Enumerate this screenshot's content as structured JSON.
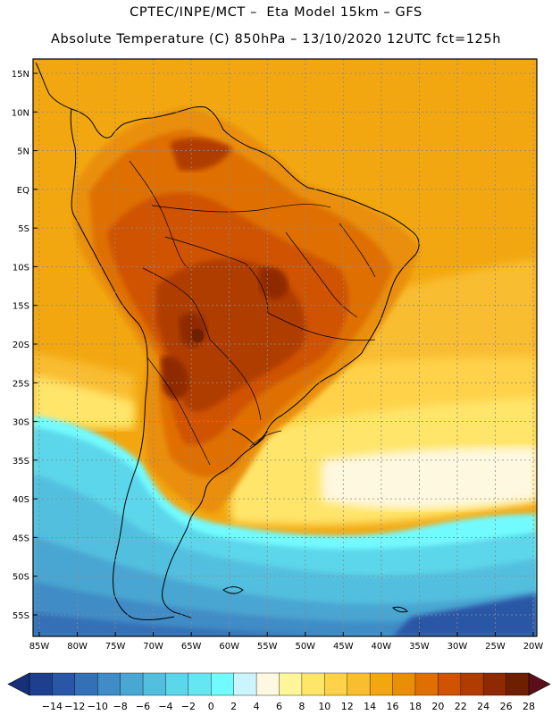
{
  "title_line1": "CPTEC/INPE/MCT –  Eta Model 15km – GFS",
  "title_line2": "Absolute Temperature (C) 850hPa – 13/10/2020 12UTC fct=125h",
  "lat_labels": [
    "15N",
    "10N",
    "5N",
    "EQ",
    "5S",
    "10S",
    "15S",
    "20S",
    "25S",
    "30S",
    "35S",
    "40S",
    "45S",
    "50S",
    "55S"
  ],
  "lat_values": [
    15,
    10,
    5,
    0,
    -5,
    -10,
    -15,
    -20,
    -25,
    -30,
    -35,
    -40,
    -45,
    -50,
    -55
  ],
  "lon_labels": [
    "85W",
    "80W",
    "75W",
    "70W",
    "65W",
    "60W",
    "55W",
    "50W",
    "45W",
    "40W",
    "35W",
    "30W",
    "25W",
    "20W"
  ],
  "lon_values": [
    -85,
    -80,
    -75,
    -70,
    -65,
    -60,
    -55,
    -50,
    -45,
    -40,
    -35,
    -30,
    -25,
    -20
  ],
  "colorbar": {
    "labels": [
      "-14",
      "-12",
      "-10",
      "-8",
      "-6",
      "-4",
      "-2",
      "0",
      "2",
      "4",
      "6",
      "8",
      "10",
      "12",
      "14",
      "16",
      "18",
      "20",
      "22",
      "24",
      "26",
      "28"
    ],
    "colors": [
      "#1e3f8e",
      "#2a56a6",
      "#3470b6",
      "#3f8cc6",
      "#4aa6d2",
      "#52bfdf",
      "#5cd6ea",
      "#66e6f2",
      "#72fbff",
      "#ccf4ff",
      "#fff8e0",
      "#fff59a",
      "#ffe56a",
      "#ffd24a",
      "#f9bd30",
      "#f2a710",
      "#e98f07",
      "#df6f02",
      "#cf5300",
      "#b03c00",
      "#8f2a00",
      "#6e1f00"
    ],
    "under_color": "#173079",
    "over_color": "#5a0f1a"
  },
  "colors": {
    "ocean_warm": "#f2a710",
    "land_hot": "#b03c00",
    "land_very_hot": "#8f2a00",
    "ocean_cold": "#52bfdf",
    "coastline": "#000000"
  }
}
